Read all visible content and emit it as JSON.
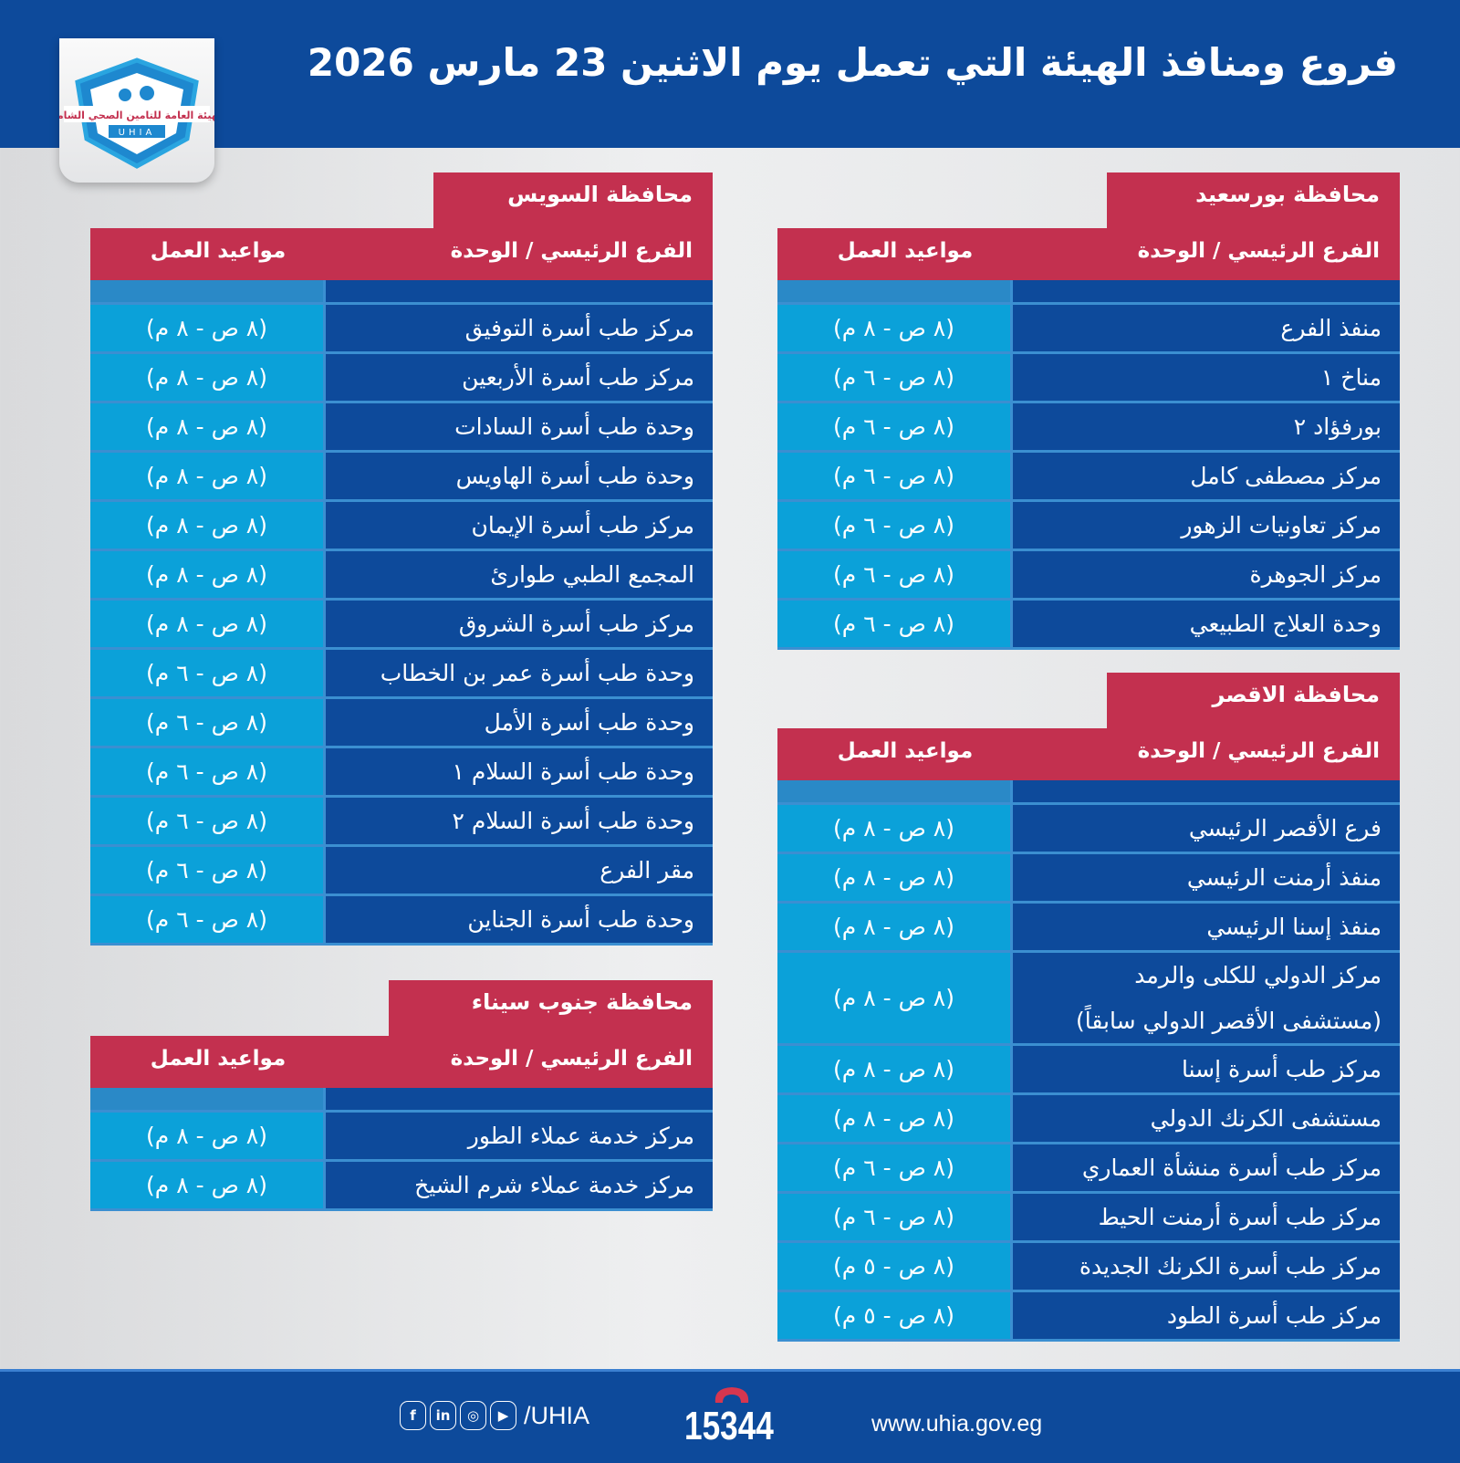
{
  "header": {
    "title": "فروع ومنافذ الهيئة التي تعمل يوم الاثنين 23 مارس 2026"
  },
  "logo": {
    "text_ar": "الهيئة العامة للتامين الصحي الشامل",
    "text_en": "UHIA"
  },
  "colors": {
    "header_blue": "#0d4a9b",
    "accent_red": "#c3304f",
    "hours_cyan": "#0ba1d9"
  },
  "columns": {
    "name": "الفرع الرئيسي / الوحدة",
    "hours": "مواعيد العمل"
  },
  "governorates": [
    {
      "name": "محافظة بورسعيد",
      "rows": [
        {
          "name": [
            "منفذ الفرع"
          ],
          "hours": "(٨ ص - ٨ م)"
        },
        {
          "name": [
            "مناخ ١"
          ],
          "hours": "(٨ ص - ٦ م)"
        },
        {
          "name": [
            "بورفؤاد ٢"
          ],
          "hours": "(٨ ص - ٦ م)"
        },
        {
          "name": [
            "مركز مصطفى كامل"
          ],
          "hours": "(٨ ص - ٦ م)"
        },
        {
          "name": [
            "مركز تعاونيات الزهور"
          ],
          "hours": "(٨ ص - ٦ م)"
        },
        {
          "name": [
            "مركز الجوهرة"
          ],
          "hours": "(٨ ص - ٦ م)"
        },
        {
          "name": [
            "وحدة العلاج الطبيعي"
          ],
          "hours": "(٨ ص - ٦ م)"
        }
      ]
    },
    {
      "name": "محافظة الاقصر",
      "rows": [
        {
          "name": [
            "فرع الأقصر الرئيسي"
          ],
          "hours": "(٨ ص - ٨ م)"
        },
        {
          "name": [
            "منفذ أرمنت الرئيسي"
          ],
          "hours": "(٨ ص - ٨ م)"
        },
        {
          "name": [
            "منفذ إسنا الرئيسي"
          ],
          "hours": "(٨ ص - ٨ م)"
        },
        {
          "name": [
            "مركز الدولي للكلى والرمد",
            "(مستشفى الأقصر الدولي سابقاً)"
          ],
          "hours": "(٨ ص - ٨ م)"
        },
        {
          "name": [
            "مركز طب أسرة إسنا"
          ],
          "hours": "(٨ ص - ٨ م)"
        },
        {
          "name": [
            "مستشفى الكرنك الدولي"
          ],
          "hours": "(٨ ص - ٨ م)"
        },
        {
          "name": [
            "مركز طب أسرة منشأة العماري"
          ],
          "hours": "(٨ ص - ٦ م)"
        },
        {
          "name": [
            "مركز طب أسرة أرمنت الحيط"
          ],
          "hours": "(٨ ص - ٦ م)"
        },
        {
          "name": [
            "مركز طب أسرة الكرنك الجديدة"
          ],
          "hours": "(٨ ص - ٥ م)"
        },
        {
          "name": [
            "مركز طب أسرة الطود"
          ],
          "hours": "(٨ ص - ٥ م)"
        }
      ]
    },
    {
      "name": "محافظة السويس",
      "rows": [
        {
          "name": [
            "مركز طب أسرة التوفيق"
          ],
          "hours": "(٨ ص - ٨ م)"
        },
        {
          "name": [
            "مركز طب أسرة الأربعين"
          ],
          "hours": "(٨ ص - ٨ م)"
        },
        {
          "name": [
            "وحدة طب أسرة السادات"
          ],
          "hours": "(٨ ص - ٨ م)"
        },
        {
          "name": [
            "وحدة طب أسرة الهاويس"
          ],
          "hours": "(٨ ص - ٨ م)"
        },
        {
          "name": [
            "مركز طب أسرة الإيمان"
          ],
          "hours": "(٨ ص - ٨ م)"
        },
        {
          "name": [
            "المجمع الطبي طوارئ"
          ],
          "hours": "(٨ ص - ٨ م)"
        },
        {
          "name": [
            "مركز طب أسرة الشروق"
          ],
          "hours": "(٨ ص - ٨ م)"
        },
        {
          "name": [
            "وحدة طب أسرة عمر بن الخطاب"
          ],
          "hours": "(٨ ص - ٦ م)"
        },
        {
          "name": [
            "وحدة طب أسرة الأمل"
          ],
          "hours": "(٨ ص - ٦ م)"
        },
        {
          "name": [
            "وحدة طب أسرة السلام ١"
          ],
          "hours": "(٨ ص - ٦ م)"
        },
        {
          "name": [
            "وحدة طب أسرة السلام ٢"
          ],
          "hours": "(٨ ص - ٦ م)"
        },
        {
          "name": [
            "مقر الفرع"
          ],
          "hours": "(٨ ص - ٦ م)"
        },
        {
          "name": [
            "وحدة طب أسرة الجناين"
          ],
          "hours": "(٨ ص - ٦ م)"
        }
      ]
    },
    {
      "name": "محافظة جنوب سيناء",
      "rows": [
        {
          "name": [
            "مركز خدمة عملاء الطور"
          ],
          "hours": "(٨ ص - ٨ م)"
        },
        {
          "name": [
            "مركز خدمة عملاء شرم الشيخ"
          ],
          "hours": "(٨ ص - ٨ م)"
        }
      ]
    }
  ],
  "footer": {
    "social_icons": [
      "facebook-icon",
      "linkedin-icon",
      "instagram-icon",
      "youtube-icon"
    ],
    "handle": "/UHIA",
    "hotline": "15344",
    "url": "www.uhia.gov.eg"
  }
}
